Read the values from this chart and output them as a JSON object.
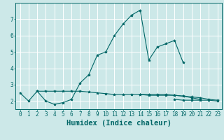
{
  "xlabel": "Humidex (Indice chaleur)",
  "x": [
    0,
    1,
    2,
    3,
    4,
    5,
    6,
    7,
    8,
    9,
    10,
    11,
    12,
    13,
    14,
    15,
    16,
    17,
    18,
    19,
    20,
    21,
    22,
    23
  ],
  "line1": [
    2.5,
    2.0,
    2.6,
    2.0,
    1.8,
    1.9,
    2.1,
    3.1,
    3.6,
    4.8,
    5.0,
    6.0,
    6.7,
    7.25,
    7.55,
    4.5,
    5.3,
    5.5,
    5.7,
    4.35,
    null,
    null,
    null,
    null
  ],
  "line2": [
    null,
    null,
    2.6,
    2.6,
    2.6,
    2.6,
    2.6,
    2.6,
    2.55,
    2.5,
    2.45,
    2.4,
    2.4,
    2.4,
    2.4,
    2.4,
    2.4,
    2.4,
    2.35,
    2.3,
    2.2,
    2.1,
    null,
    null
  ],
  "line3": [
    null,
    null,
    null,
    null,
    null,
    null,
    null,
    null,
    null,
    null,
    null,
    null,
    null,
    null,
    2.4,
    2.35,
    2.35,
    2.35,
    2.35,
    2.3,
    2.25,
    2.2,
    2.1,
    2.05
  ],
  "line4": [
    null,
    null,
    null,
    null,
    null,
    null,
    null,
    null,
    null,
    null,
    null,
    null,
    null,
    null,
    null,
    null,
    null,
    null,
    2.1,
    2.05,
    2.05,
    2.05,
    2.05,
    2.0
  ],
  "line_color": "#006666",
  "bg_color": "#cce8e8",
  "grid_color": "#ffffff",
  "marker": "*",
  "ylim": [
    1.5,
    8.0
  ],
  "xlim": [
    -0.5,
    23.5
  ],
  "yticks": [
    2,
    3,
    4,
    5,
    6,
    7
  ],
  "xticks": [
    0,
    1,
    2,
    3,
    4,
    5,
    6,
    7,
    8,
    9,
    10,
    11,
    12,
    13,
    14,
    15,
    16,
    17,
    18,
    19,
    20,
    21,
    22,
    23
  ],
  "tick_fontsize": 5.5,
  "label_fontsize": 7.5
}
